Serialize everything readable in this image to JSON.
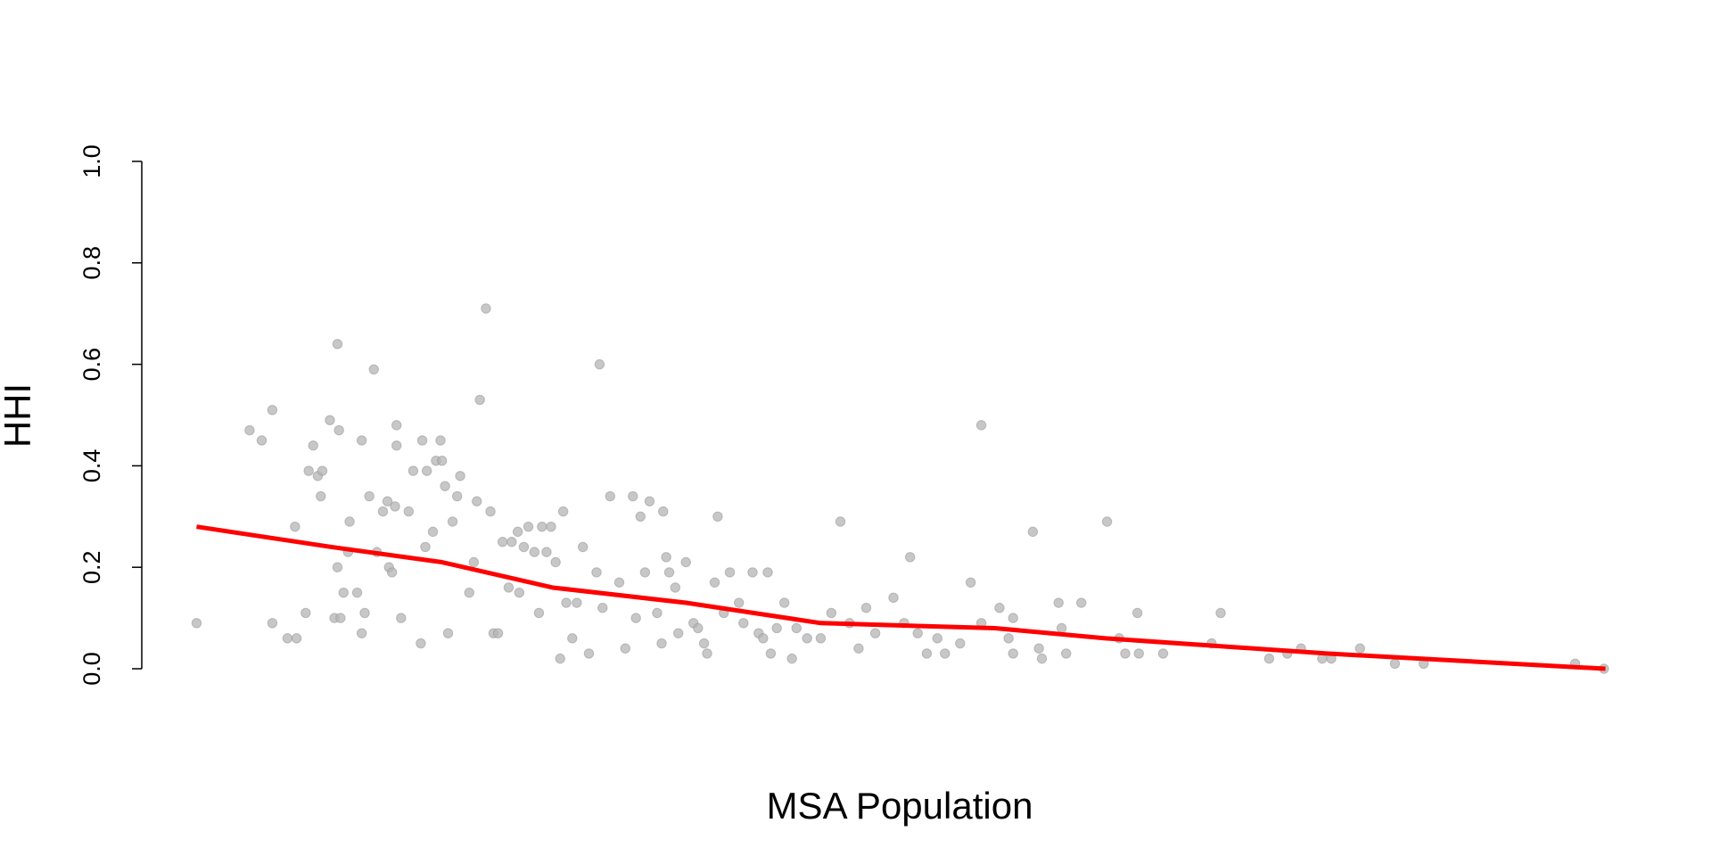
{
  "chart_data": {
    "type": "scatter",
    "xlabel": "MSA Population",
    "ylabel": "HHI",
    "xlim": [
      0,
      100
    ],
    "ylim": [
      0,
      1
    ],
    "yticks": [
      {
        "value": 0,
        "label": "0.0"
      },
      {
        "value": 0.2,
        "label": "0.2"
      },
      {
        "value": 0.4,
        "label": "0.4"
      },
      {
        "value": 0.6,
        "label": "0.6"
      },
      {
        "value": 0.8,
        "label": "0.8"
      },
      {
        "value": 1,
        "label": "1.0"
      }
    ],
    "series": [
      {
        "type": "scatter",
        "color": "#b4b4b4",
        "x": [
          3.5,
          7.0,
          7.8,
          8.5,
          8.5,
          9.5,
          10.1,
          10.0,
          10.7,
          10.9,
          11.2,
          11.5,
          11.7,
          11.8,
          12.3,
          12.8,
          12.9,
          12.8,
          12.6,
          13.0,
          13.2,
          13.5,
          13.6,
          14.4,
          14.1,
          14.4,
          14.6,
          14.9,
          15.2,
          15.4,
          15.8,
          16.1,
          16.2,
          16.4,
          16.7,
          16.7,
          16.6,
          17.0,
          17.5,
          17.8,
          18.3,
          18.4,
          18.7,
          18.6,
          19.1,
          19.3,
          19.6,
          19.7,
          19.9,
          20.1,
          20.4,
          20.7,
          20.9,
          21.5,
          21.8,
          22.0,
          22.2,
          22.6,
          22.9,
          23.1,
          23.4,
          23.7,
          24.1,
          24.3,
          24.7,
          24.8,
          25.1,
          25.4,
          25.8,
          26.1,
          26.3,
          26.6,
          26.9,
          27.2,
          27.5,
          27.7,
          27.9,
          28.3,
          28.6,
          29.0,
          29.4,
          29.9,
          30.1,
          30.3,
          30.8,
          31.4,
          31.8,
          32.3,
          32.5,
          32.8,
          33.1,
          33.4,
          33.9,
          34.2,
          34.3,
          34.5,
          34.7,
          35.1,
          35.3,
          35.8,
          36.3,
          36.6,
          37.0,
          37.2,
          37.7,
          37.9,
          38.3,
          38.7,
          39.3,
          39.6,
          40.2,
          40.6,
          40.9,
          41.2,
          41.4,
          41.8,
          42.3,
          42.8,
          43.1,
          43.8,
          44.7,
          45.4,
          46.0,
          46.6,
          47.2,
          47.7,
          48.3,
          49.5,
          50.2,
          50.6,
          51.1,
          51.7,
          52.4,
          52.9,
          53.9,
          54.6,
          55.3,
          55.3,
          56.5,
          57.1,
          57.4,
          57.4,
          58.7,
          59.1,
          59.3,
          60.4,
          60.6,
          60.9,
          61.9,
          63.6,
          64.4,
          64.8,
          65.6,
          65.7,
          67.3,
          70.5,
          71.1,
          74.3,
          75.5,
          76.4,
          77.8,
          78.4,
          80.3,
          82.6,
          84.5,
          94.5,
          96.4
        ],
        "values": [
          0.09,
          0.47,
          0.45,
          0.51,
          0.09,
          0.06,
          0.06,
          0.28,
          0.11,
          0.39,
          0.44,
          0.38,
          0.34,
          0.39,
          0.49,
          0.64,
          0.47,
          0.2,
          0.1,
          0.1,
          0.15,
          0.23,
          0.29,
          0.45,
          0.15,
          0.07,
          0.11,
          0.34,
          0.59,
          0.23,
          0.31,
          0.33,
          0.2,
          0.19,
          0.48,
          0.44,
          0.32,
          0.1,
          0.31,
          0.39,
          0.05,
          0.45,
          0.39,
          0.24,
          0.27,
          0.41,
          0.45,
          0.41,
          0.36,
          0.07,
          0.29,
          0.34,
          0.38,
          0.15,
          0.21,
          0.33,
          0.53,
          0.71,
          0.31,
          0.07,
          0.07,
          0.25,
          0.16,
          0.25,
          0.27,
          0.15,
          0.24,
          0.28,
          0.23,
          0.11,
          0.28,
          0.23,
          0.28,
          0.21,
          0.02,
          0.31,
          0.13,
          0.06,
          0.13,
          0.24,
          0.03,
          0.19,
          0.6,
          0.12,
          0.34,
          0.17,
          0.04,
          0.34,
          0.1,
          0.3,
          0.19,
          0.33,
          0.11,
          0.05,
          0.31,
          0.22,
          0.19,
          0.16,
          0.07,
          0.21,
          0.09,
          0.08,
          0.05,
          0.03,
          0.17,
          0.3,
          0.11,
          0.19,
          0.13,
          0.09,
          0.19,
          0.07,
          0.06,
          0.19,
          0.03,
          0.08,
          0.13,
          0.02,
          0.08,
          0.06,
          0.06,
          0.11,
          0.29,
          0.09,
          0.04,
          0.12,
          0.07,
          0.14,
          0.09,
          0.22,
          0.07,
          0.03,
          0.06,
          0.03,
          0.05,
          0.17,
          0.48,
          0.09,
          0.12,
          0.06,
          0.03,
          0.1,
          0.27,
          0.04,
          0.02,
          0.13,
          0.08,
          0.03,
          0.13,
          0.29,
          0.06,
          0.03,
          0.11,
          0.03,
          0.03,
          0.05,
          0.11,
          0.02,
          0.03,
          0.04,
          0.02,
          0.02,
          0.04,
          0.01,
          0.01,
          0.01,
          0.0
        ]
      },
      {
        "type": "line",
        "color": "#ff0000",
        "x": [
          3.5,
          12.4,
          19.7,
          27.0,
          35.8,
          44.7,
          56.2,
          63.5,
          78.1,
          96.5
        ],
        "values": [
          0.28,
          0.24,
          0.21,
          0.16,
          0.13,
          0.09,
          0.08,
          0.06,
          0.03,
          0.0
        ]
      }
    ]
  }
}
